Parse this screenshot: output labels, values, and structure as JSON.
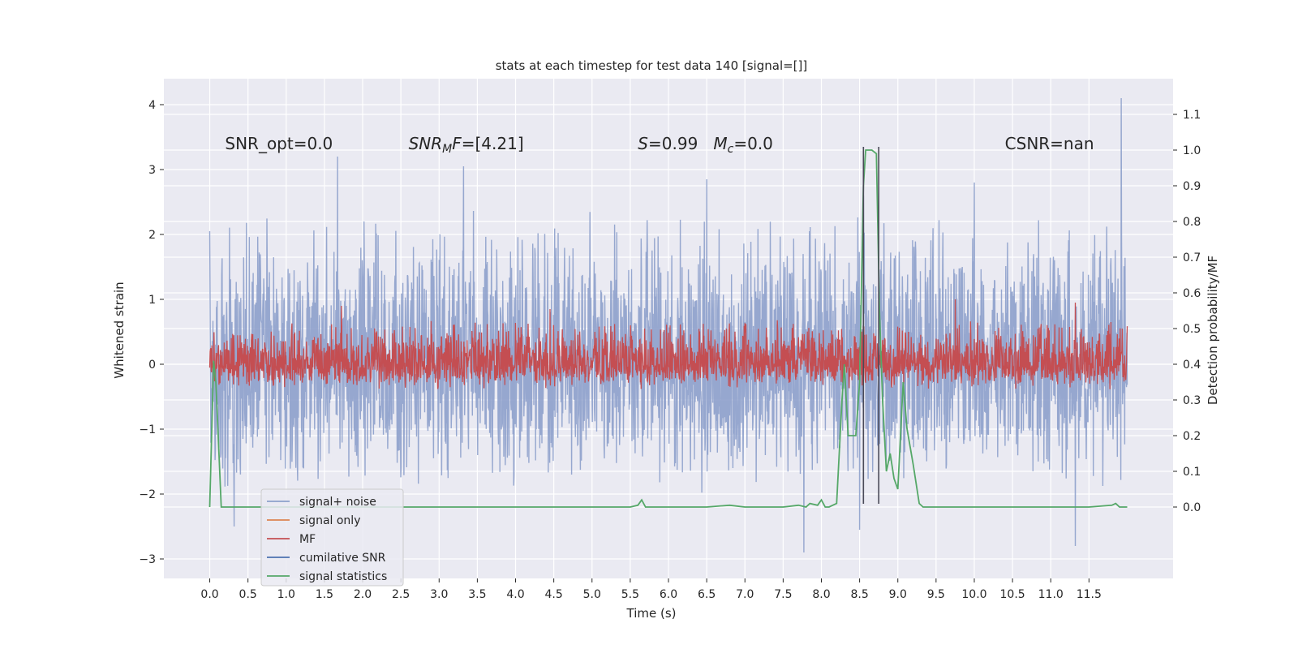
{
  "chart_data": {
    "type": "line",
    "title": "stats at each timestep for test data 140 [signal=[]]",
    "xlabel": "Time (s)",
    "ylabel": "Whitened strain",
    "ylabel_right": "Detection probability/MF",
    "xlim": [
      -0.6,
      12.6
    ],
    "ylim": [
      -3.3,
      4.4
    ],
    "ylim_right": [
      -0.2,
      1.2
    ],
    "x_ticks": [
      0.0,
      0.5,
      1.0,
      1.5,
      2.0,
      2.5,
      3.0,
      3.5,
      4.0,
      4.5,
      5.0,
      5.5,
      6.0,
      6.5,
      7.0,
      7.5,
      8.0,
      8.5,
      9.0,
      9.5,
      10.0,
      10.5,
      11.0,
      11.5
    ],
    "x_tick_labels": [
      "0.0",
      "0.5",
      "1.0",
      "1.5",
      "2.0",
      "2.5",
      "3.0",
      "3.5",
      "4.0",
      "4.5",
      "5.0",
      "5.5",
      "6.0",
      "6.5",
      "7.0",
      "7.5",
      "8.0",
      "8.5",
      "9.0",
      "9.5",
      "10.0",
      "10.5",
      "11.0",
      "11.5"
    ],
    "y_ticks": [
      -3,
      -2,
      -1,
      0,
      1,
      2,
      3,
      4
    ],
    "y_tick_labels": [
      "−3",
      "−2",
      "−1",
      "0",
      "1",
      "2",
      "3",
      "4"
    ],
    "y_right_ticks": [
      0.0,
      0.1,
      0.2,
      0.3,
      0.4,
      0.5,
      0.6,
      0.7,
      0.8,
      0.9,
      1.0,
      1.1
    ],
    "y_right_tick_labels": [
      "0.0",
      "0.1",
      "0.2",
      "0.3",
      "0.4",
      "0.5",
      "0.6",
      "0.7",
      "0.8",
      "0.9",
      "1.0",
      "1.1"
    ],
    "grid": true,
    "legend_position": "lower-left",
    "annotations": [
      {
        "text": "SNR_opt=0.0",
        "x": 0.2,
        "y": 3.4
      },
      {
        "text": "SNR_MF=[4.21]",
        "x": 2.6,
        "y": 3.4
      },
      {
        "text": "S=0.99   M_c=0.0",
        "x": 5.6,
        "y": 3.4
      },
      {
        "text": "CSNR=nan",
        "x": 10.4,
        "y": 3.4
      }
    ],
    "vlines": [
      {
        "x": 8.55,
        "y_range": [
          -2.15,
          3.35
        ]
      },
      {
        "x": 8.75,
        "y_range": [
          -2.15,
          3.35
        ]
      }
    ],
    "series": [
      {
        "name": "signal+ noise",
        "color": "#8da0cb",
        "axis": "left",
        "t_start": 0.0,
        "t_end": 12.0,
        "envelope_min": [
          -2.5,
          0.0
        ],
        "envelope_max": [
          0.0,
          4.1
        ],
        "peaks": [
          [
            0.0,
            2.05
          ],
          [
            1.67,
            3.2
          ],
          [
            3.32,
            3.05
          ],
          [
            6.5,
            2.85
          ],
          [
            8.55,
            2.6
          ],
          [
            10.0,
            2.8
          ],
          [
            11.92,
            4.1
          ]
        ],
        "troughs": [
          [
            0.32,
            -2.5
          ],
          [
            7.77,
            -2.9
          ],
          [
            8.5,
            -2.55
          ],
          [
            11.32,
            -2.8
          ]
        ]
      },
      {
        "name": "signal only",
        "color": "#dd8452",
        "axis": "left",
        "values": []
      },
      {
        "name": "MF",
        "color": "#c44e52",
        "axis": "left",
        "t_start": 0.0,
        "t_end": 12.0,
        "envelope_min": [
          -0.45,
          0.0
        ],
        "envelope_max": [
          0.0,
          0.95
        ],
        "peaks": [
          [
            1.72,
            0.9
          ],
          [
            4.45,
            0.85
          ],
          [
            9.75,
            1.0
          ],
          [
            11.32,
            0.95
          ]
        ],
        "troughs": []
      },
      {
        "name": "cumilative SNR",
        "color": "#4c72b0",
        "axis": "left",
        "values": []
      },
      {
        "name": "signal statistics",
        "color": "#55a868",
        "axis": "right",
        "x": [
          0.0,
          0.05,
          0.08,
          0.12,
          0.15,
          0.2,
          0.5,
          1.0,
          2.0,
          3.0,
          4.0,
          5.0,
          5.5,
          5.6,
          5.65,
          5.7,
          5.75,
          6.0,
          6.5,
          6.8,
          7.0,
          7.5,
          7.7,
          7.8,
          7.85,
          7.95,
          8.0,
          8.05,
          8.1,
          8.2,
          8.27,
          8.3,
          8.35,
          8.38,
          8.45,
          8.5,
          8.55,
          8.58,
          8.62,
          8.66,
          8.72,
          8.76,
          8.8,
          8.85,
          8.9,
          8.95,
          9.0,
          9.03,
          9.07,
          9.12,
          9.2,
          9.28,
          9.33,
          9.4,
          9.5,
          10.0,
          10.5,
          11.0,
          11.5,
          11.8,
          11.85,
          11.9,
          11.95,
          12.0
        ],
        "y": [
          0.0,
          0.41,
          0.35,
          0.15,
          0.0,
          0.0,
          0.0,
          0.0,
          0.0,
          0.0,
          0.0,
          0.0,
          0.0,
          0.005,
          0.02,
          0.0,
          0.0,
          0.0,
          0.0,
          0.005,
          0.0,
          0.0,
          0.005,
          0.0,
          0.01,
          0.005,
          0.02,
          0.0,
          0.0,
          0.01,
          0.3,
          0.4,
          0.2,
          0.2,
          0.2,
          0.35,
          0.9,
          1.0,
          1.0,
          1.0,
          0.99,
          0.55,
          0.3,
          0.1,
          0.15,
          0.08,
          0.05,
          0.18,
          0.35,
          0.22,
          0.12,
          0.01,
          0.0,
          0.0,
          0.0,
          0.0,
          0.0,
          0.0,
          0.0,
          0.005,
          0.01,
          0.0,
          0.0,
          0.0
        ]
      }
    ]
  },
  "legend": {
    "items": [
      {
        "label": "signal+ noise",
        "color": "#8da0cb"
      },
      {
        "label": "signal only",
        "color": "#dd8452"
      },
      {
        "label": "MF",
        "color": "#c44e52"
      },
      {
        "label": "cumilative SNR",
        "color": "#4c72b0"
      },
      {
        "label": "signal statistics",
        "color": "#55a868"
      }
    ]
  },
  "colors": {
    "plot_background": "#eaeaf2",
    "grid": "#ffffff",
    "text": "#262626",
    "vline": "#4a4a58"
  }
}
